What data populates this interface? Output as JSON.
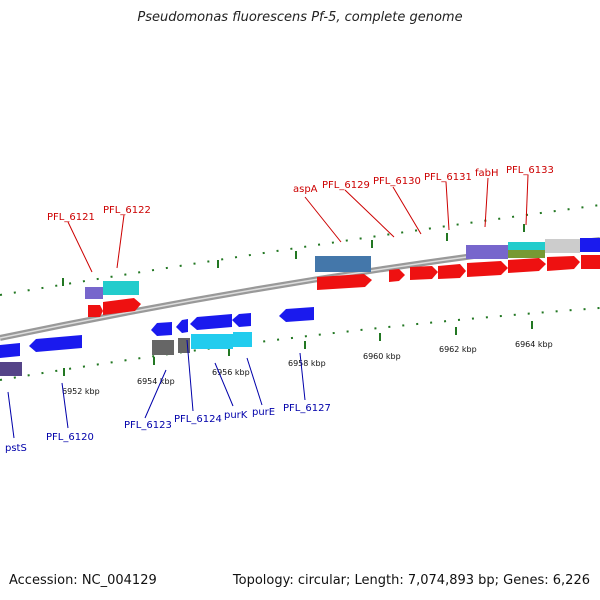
{
  "title": "Pseudomonas fluorescens Pf-5, complete genome",
  "footer": {
    "accession": "Accession: NC_004129",
    "topology": "Topology: circular; Length: 7,074,893 bp; Genes: 6,226"
  },
  "colors": {
    "forward_label": "#cc0000",
    "reverse_label": "#0000aa",
    "tick": "#227722",
    "backbone": "#999999"
  },
  "scale_labels": [
    "6952 kbp",
    "6954 kbp",
    "6956 kbp",
    "6958 kbp",
    "6960 kbp",
    "6962 kbp",
    "6964 kbp"
  ],
  "forward_genes": [
    "PFL_6121",
    "PFL_6122",
    "aspA",
    "PFL_6129",
    "PFL_6130",
    "PFL_6131",
    "fabH",
    "PFL_6133"
  ],
  "reverse_genes": [
    "pstS",
    "PFL_6120",
    "PFL_6123",
    "PFL_6124",
    "purK",
    "purE",
    "PFL_6127"
  ]
}
